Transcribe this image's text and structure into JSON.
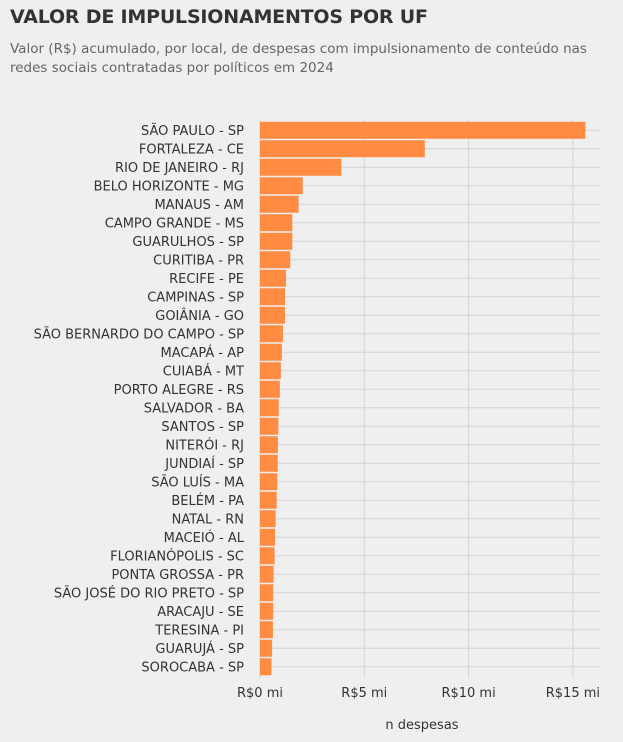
{
  "header": {
    "title": "VALOR DE IMPULSIONAMENTOS POR UF",
    "subtitle": "Valor (R$) acumulado, por local, de despesas com impulsionamento de conteúdo nas redes sociais contratadas por políticos em 2024"
  },
  "chart_data": {
    "type": "bar",
    "orientation": "horizontal",
    "title": "VALOR DE IMPULSIONAMENTOS POR UF",
    "subtitle": "Valor (R$) acumulado, por local, de despesas com impulsionamento de conteúdo nas redes sociais contratadas por políticos em 2024",
    "xlabel": "n despesas",
    "ylabel": "",
    "xlim": [
      0,
      16.3
    ],
    "x_unit": "R$ milhões",
    "ticks": [
      {
        "value": 0,
        "label": "R$0 mi"
      },
      {
        "value": 5,
        "label": "R$5 mi"
      },
      {
        "value": 10,
        "label": "R$10 mi"
      },
      {
        "value": 15,
        "label": "R$15 mi"
      }
    ],
    "grid": true,
    "bar_color": "#ff8c42",
    "categories": [
      "SÃO PAULO - SP",
      "FORTALEZA - CE",
      "RIO DE JANEIRO - RJ",
      "BELO HORIZONTE - MG",
      "MANAUS - AM",
      "CAMPO GRANDE - MS",
      "GUARULHOS - SP",
      "CURITIBA - PR",
      "RECIFE - PE",
      "CAMPINAS - SP",
      "GOIÂNIA - GO",
      "SÃO BERNARDO DO CAMPO - SP",
      "MACAPÁ - AP",
      "CUIABÁ - MT",
      "PORTO ALEGRE - RS",
      "SALVADOR - BA",
      "SANTOS - SP",
      "NITERÓI - RJ",
      "JUNDIAÍ - SP",
      "SÃO LUÍS - MA",
      "BELÉM - PA",
      "NATAL - RN",
      "MACEIÓ - AL",
      "FLORIANÓPOLIS - SC",
      "PONTA GROSSA - PR",
      "SÃO JOSÉ DO RIO PRETO - SP",
      "ARACAJU - SE",
      "TERESINA - PI",
      "GUARUJÁ - SP",
      "SOROCABA - SP"
    ],
    "values": [
      15.6,
      7.9,
      3.9,
      2.05,
      1.85,
      1.55,
      1.55,
      1.45,
      1.25,
      1.2,
      1.2,
      1.1,
      1.05,
      1.0,
      0.95,
      0.9,
      0.88,
      0.86,
      0.85,
      0.83,
      0.8,
      0.75,
      0.72,
      0.7,
      0.65,
      0.63,
      0.63,
      0.62,
      0.58,
      0.55
    ]
  }
}
